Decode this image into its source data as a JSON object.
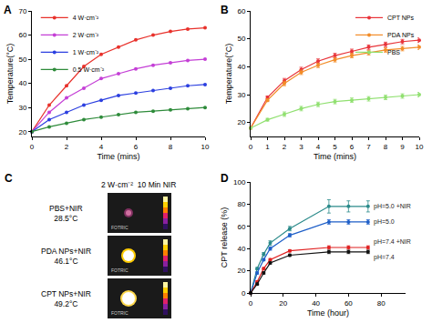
{
  "chart_data": [
    {
      "type": "line",
      "title": "A",
      "x_label": "Time (mins)",
      "y_label": "Temperature(°C)",
      "x": [
        0,
        1,
        2,
        3,
        4,
        5,
        6,
        7,
        8,
        9,
        10
      ],
      "xlim": [
        0,
        10
      ],
      "xticks": [
        0,
        2,
        4,
        6,
        8,
        10
      ],
      "ylim": [
        18,
        70
      ],
      "yticks": [
        20,
        30,
        40,
        50,
        60,
        70
      ],
      "grid": false,
      "legend": "top left",
      "marker": "circle",
      "line_style": "solid",
      "series": [
        {
          "name": "4 W·cm⁻²",
          "color": "#e8312b",
          "values": [
            20,
            31,
            39,
            47,
            52,
            55,
            58,
            60,
            61.5,
            62.5,
            63
          ]
        },
        {
          "name": "2 W·cm⁻²",
          "color": "#c43fd6",
          "values": [
            20,
            28,
            34,
            38,
            42,
            44,
            46,
            47.5,
            48.5,
            49.5,
            50
          ]
        },
        {
          "name": "1 W·cm⁻²",
          "color": "#2b3fe0",
          "values": [
            20,
            25,
            28,
            31,
            33,
            35,
            36,
            37,
            38,
            39,
            39.5
          ]
        },
        {
          "name": "0.5 W·cm⁻²",
          "color": "#2e8b3a",
          "values": [
            20,
            22,
            23.5,
            25,
            26,
            27,
            28,
            28.5,
            29,
            29.5,
            30
          ]
        }
      ]
    },
    {
      "type": "line",
      "title": "B",
      "x_label": "Time (mins)",
      "y_label": "Temperature(°C)",
      "x": [
        0,
        1,
        2,
        3,
        4,
        5,
        6,
        7,
        8,
        9,
        10
      ],
      "xlim": [
        0,
        10
      ],
      "xticks": [
        0,
        1,
        2,
        3,
        4,
        5,
        6,
        7,
        8,
        9,
        10
      ],
      "ylim": [
        15,
        60
      ],
      "yticks": [
        20,
        30,
        40,
        50,
        60
      ],
      "grid": false,
      "legend": "top right",
      "marker": "circle",
      "line_style": "solid",
      "series": [
        {
          "name": "CPT NPs",
          "color": "#e8343a",
          "values": [
            18,
            29,
            35,
            39,
            42,
            44,
            45.5,
            47,
            48,
            49,
            49.5
          ],
          "error": [
            0,
            0.5,
            0.8,
            0.8,
            0.8,
            0.8,
            0.8,
            0.8,
            0.8,
            0.8,
            0.8
          ]
        },
        {
          "name": "PDA NPs",
          "color": "#f28c28",
          "values": [
            18,
            28,
            34,
            38,
            40.5,
            42.5,
            44,
            45,
            46,
            46.5,
            47
          ],
          "error": [
            0,
            0.5,
            0.8,
            0.8,
            0.8,
            0.8,
            0.8,
            0.8,
            0.8,
            0.8,
            0.8
          ]
        },
        {
          "name": "PBS",
          "color": "#90e070",
          "values": [
            18,
            21,
            23,
            25,
            26.5,
            27.5,
            28,
            28.5,
            29,
            29.5,
            30
          ],
          "error": [
            0,
            0.5,
            0.8,
            0.8,
            0.8,
            0.8,
            0.8,
            0.8,
            0.8,
            0.8,
            0.8
          ]
        }
      ]
    },
    {
      "type": "line",
      "title": "D",
      "x_label": "Time (hour)",
      "y_label": "CPT release (%)",
      "x": [
        0,
        4,
        8,
        12,
        24,
        48,
        60,
        72
      ],
      "xlim": [
        0,
        95
      ],
      "xticks": [
        0,
        20,
        40,
        60,
        80
      ],
      "ylim": [
        0,
        100
      ],
      "yticks": [
        0,
        20,
        40,
        60,
        80,
        100
      ],
      "grid": false,
      "marker": "circle",
      "line_style": "solid",
      "series": [
        {
          "name": "pH=5.0 +NIR",
          "color": "#2a8a8a",
          "values": [
            0,
            22,
            35,
            45,
            58,
            78,
            78,
            78
          ],
          "error": [
            0,
            1,
            1.5,
            2,
            2,
            6,
            5,
            5
          ]
        },
        {
          "name": "pH=5.0",
          "color": "#1f5fc8",
          "values": [
            0,
            18,
            30,
            40,
            52,
            64,
            64,
            64
          ],
          "error": [
            0,
            1,
            1,
            1.5,
            1.5,
            2,
            2,
            2
          ]
        },
        {
          "name": "pH=7.4 +NIR",
          "color": "#e02020",
          "values": [
            0,
            10,
            22,
            30,
            38,
            41,
            41,
            41
          ],
          "error": [
            0,
            1,
            1,
            1,
            1,
            1.5,
            1.5,
            1.5
          ]
        },
        {
          "name": "pH=7.4",
          "color": "#111111",
          "values": [
            0,
            8,
            18,
            27,
            34,
            37,
            37,
            37
          ],
          "error": [
            0,
            1,
            1,
            1,
            1,
            1.5,
            1.5,
            1.5
          ]
        }
      ]
    }
  ],
  "panel_c": {
    "title": "C",
    "header": "2 W·cm⁻²  10 Min NIR",
    "watermark": "FOTRIC",
    "rows": [
      {
        "label": "PBS+NIR",
        "temperature": "28.5°C"
      },
      {
        "label": "PDA NPs+NIR",
        "temperature": "46.1°C"
      },
      {
        "label": "CPT NPs+NIR",
        "temperature": "49.2°C"
      }
    ]
  }
}
